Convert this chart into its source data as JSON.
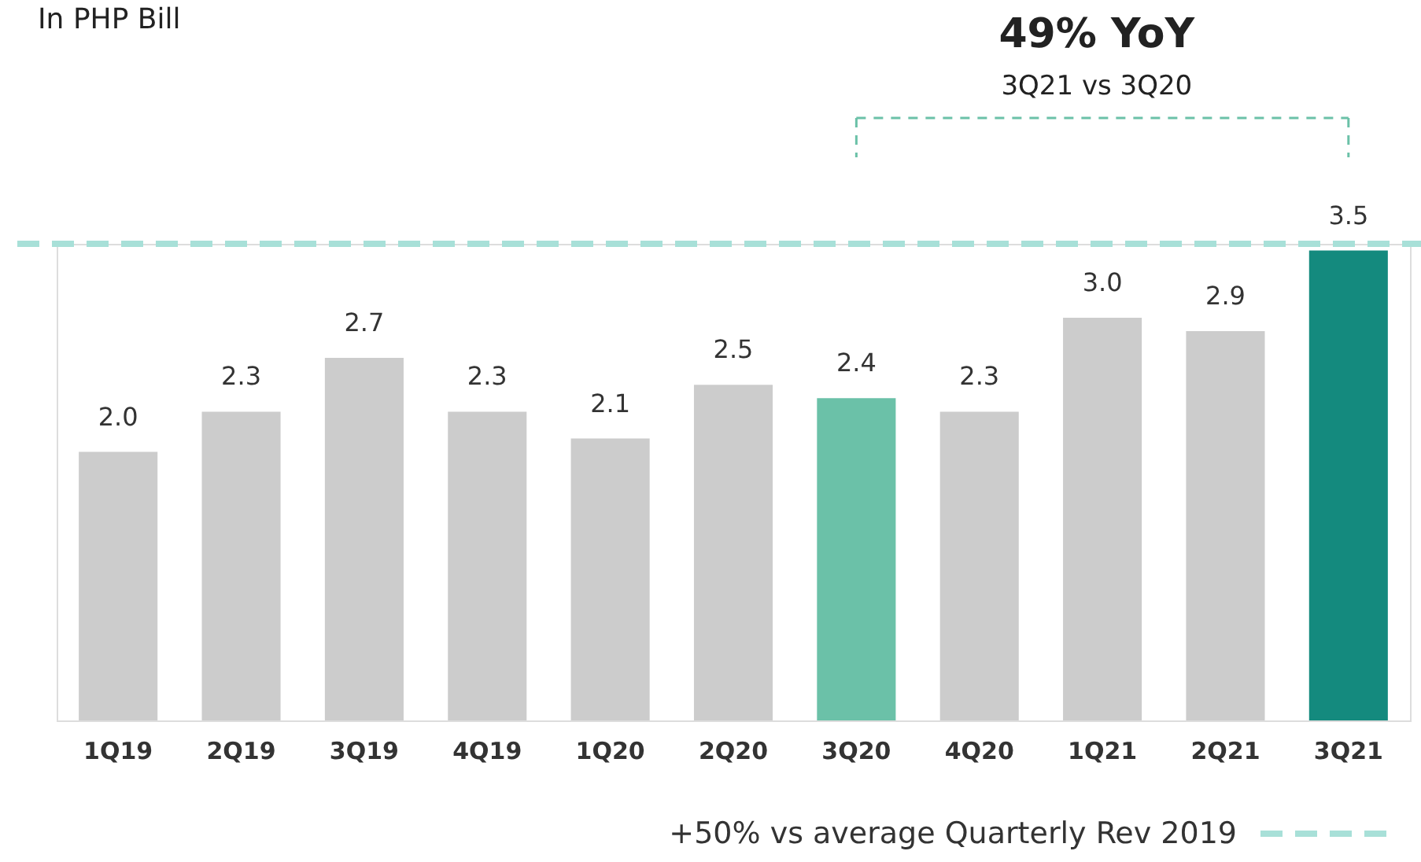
{
  "chart_data": {
    "type": "bar",
    "categories": [
      "1Q19",
      "2Q19",
      "3Q19",
      "4Q19",
      "1Q20",
      "2Q20",
      "3Q20",
      "4Q20",
      "1Q21",
      "2Q21",
      "3Q21"
    ],
    "values": [
      2.0,
      2.3,
      2.7,
      2.3,
      2.1,
      2.5,
      2.4,
      2.3,
      3.0,
      2.9,
      3.5
    ],
    "colors": [
      "#cccccc",
      "#cccccc",
      "#cccccc",
      "#cccccc",
      "#cccccc",
      "#cccccc",
      "#6bc1a8",
      "#cccccc",
      "#cccccc",
      "#cccccc",
      "#148a7e"
    ],
    "value_labels": [
      "2.0",
      "2.3",
      "2.7",
      "2.3",
      "2.1",
      "2.5",
      "2.4",
      "2.3",
      "3.0",
      "2.9",
      "3.5"
    ],
    "tick_labels": "x",
    "ref_lines": [
      {
        "axis": "y",
        "value": 3.55,
        "label": "+50% vs average Quarterly Rev 2019",
        "color": "#a8e0d8",
        "line_style": "dashed"
      }
    ],
    "annotations": [
      "In PHP Bill",
      "49% YoY",
      "3Q21 vs 3Q20"
    ]
  }
}
